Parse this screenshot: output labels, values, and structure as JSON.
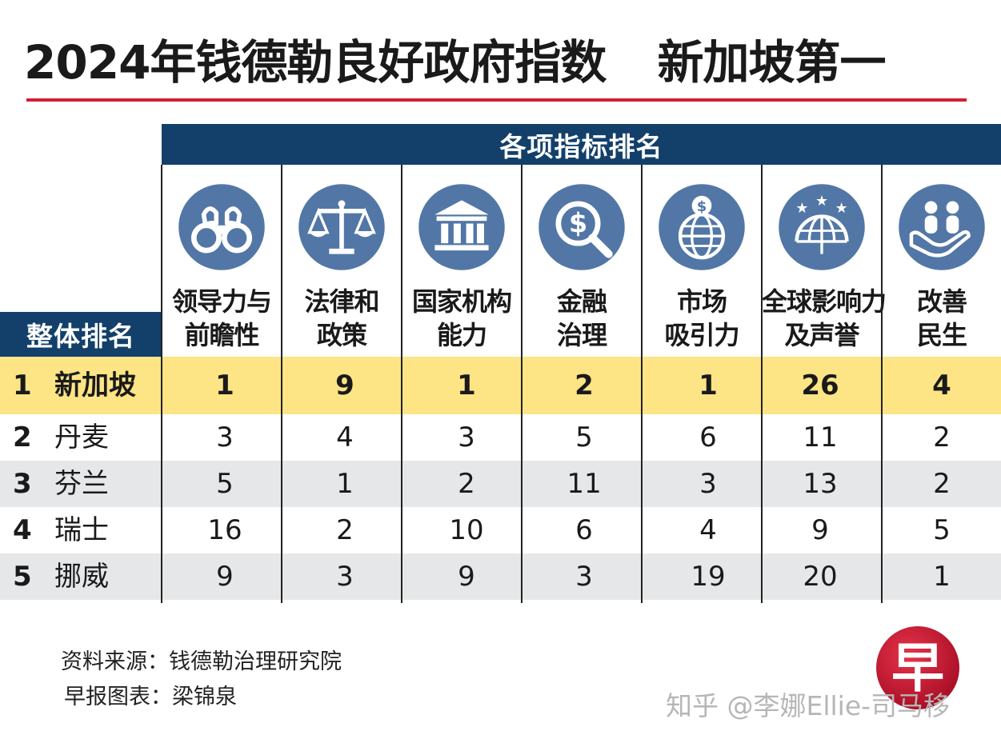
{
  "title_left": "2024年钱德勒良好政府指数",
  "title_right": "新加坡第一",
  "header_band": "各项指标排名",
  "overall_label": "整体排名",
  "indicators": [
    {
      "line1": "领导力与",
      "line2": "前瞻性",
      "icon": "binoculars-icon"
    },
    {
      "line1": "法律和",
      "line2": "政策",
      "icon": "scales-icon"
    },
    {
      "line1": "国家机构",
      "line2": "能力",
      "icon": "institution-icon"
    },
    {
      "line1": "金融",
      "line2": "治理",
      "icon": "finance-magnifier-icon"
    },
    {
      "line1": "市场",
      "line2": "吸引力",
      "icon": "globe-dollar-icon"
    },
    {
      "line1": "全球影响力",
      "line2": "及声誉",
      "icon": "globe-stars-icon"
    },
    {
      "line1": "改善",
      "line2": "民生",
      "icon": "hand-people-icon"
    }
  ],
  "rows": [
    {
      "rank": "1",
      "country": "新加坡",
      "values": [
        "1",
        "9",
        "1",
        "2",
        "1",
        "26",
        "4"
      ]
    },
    {
      "rank": "2",
      "country": "丹麦",
      "values": [
        "3",
        "4",
        "3",
        "5",
        "6",
        "11",
        "2"
      ]
    },
    {
      "rank": "3",
      "country": "芬兰",
      "values": [
        "5",
        "1",
        "2",
        "11",
        "3",
        "13",
        "2"
      ]
    },
    {
      "rank": "4",
      "country": "瑞士",
      "values": [
        "16",
        "2",
        "10",
        "6",
        "4",
        "9",
        "5"
      ]
    },
    {
      "rank": "5",
      "country": "挪威",
      "values": [
        "9",
        "3",
        "9",
        "3",
        "19",
        "20",
        "1"
      ]
    }
  ],
  "source": "资料来源：钱德勒治理研究院",
  "chart_by": "早报图表：梁锦泉",
  "logo_text": "早",
  "watermark": "知乎 @李娜Ellie-司马移",
  "colors": {
    "navy": "#13406a",
    "icon_blue": "#5277a6",
    "highlight": "#fde485",
    "shade": "#e6e7e9",
    "accent_red": "#d21f33",
    "logo_red": "#c8102e"
  },
  "chart_data": {
    "type": "table",
    "title": "2024年钱德勒良好政府指数　新加坡第一",
    "columns": [
      "领导力与前瞻性",
      "法律和政策",
      "国家机构能力",
      "金融治理",
      "市场吸引力",
      "全球影响力及声誉",
      "改善民生"
    ],
    "rows": [
      {
        "overall_rank": 1,
        "country": "新加坡",
        "values": [
          1,
          9,
          1,
          2,
          1,
          26,
          4
        ]
      },
      {
        "overall_rank": 2,
        "country": "丹麦",
        "values": [
          3,
          4,
          3,
          5,
          6,
          11,
          2
        ]
      },
      {
        "overall_rank": 3,
        "country": "芬兰",
        "values": [
          5,
          1,
          2,
          11,
          3,
          13,
          2
        ]
      },
      {
        "overall_rank": 4,
        "country": "瑞士",
        "values": [
          16,
          2,
          10,
          6,
          4,
          9,
          5
        ]
      },
      {
        "overall_rank": 5,
        "country": "挪威",
        "values": [
          9,
          3,
          9,
          3,
          19,
          20,
          1
        ]
      }
    ]
  }
}
